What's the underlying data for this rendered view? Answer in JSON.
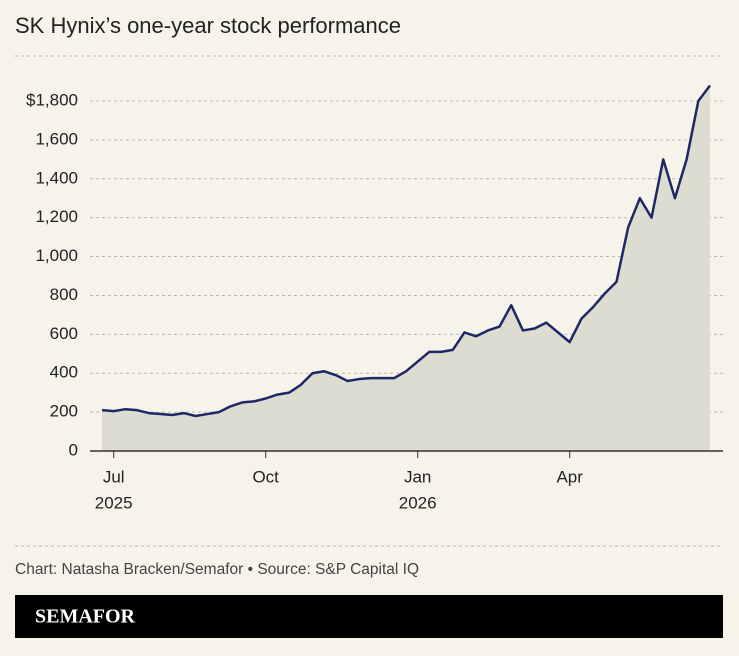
{
  "chart_data": {
    "type": "line",
    "title": "SK Hynix’s one-year stock performance",
    "categories": [
      null,
      null,
      null,
      null,
      null,
      null,
      null,
      null,
      null,
      null,
      null,
      null,
      null,
      null,
      null,
      null,
      null,
      null,
      null,
      null,
      null,
      null,
      null,
      null,
      null,
      null,
      null,
      null,
      null,
      null,
      null,
      null,
      null,
      null,
      null,
      null,
      null,
      null,
      null,
      null,
      null,
      null,
      null,
      null,
      null,
      null,
      null,
      null,
      null,
      null,
      null,
      null,
      null
    ],
    "xticks": [
      {
        "value": 1,
        "label": "Jul"
      },
      {
        "value": 14,
        "label": "Oct"
      },
      {
        "value": 27,
        "label": "Jan"
      },
      {
        "value": 40,
        "label": "Apr"
      }
    ],
    "xtick_years": [
      {
        "value": 1,
        "label": "2025"
      },
      {
        "value": 27,
        "label": "2026"
      }
    ],
    "values": [
      210,
      205,
      215,
      210,
      195,
      190,
      185,
      195,
      180,
      190,
      200,
      230,
      250,
      255,
      270,
      290,
      300,
      340,
      400,
      410,
      390,
      360,
      370,
      375,
      375,
      375,
      410,
      460,
      510,
      510,
      520,
      610,
      590,
      620,
      640,
      750,
      620,
      630,
      660,
      610,
      560,
      680,
      740,
      810,
      870,
      1150,
      1300,
      1200,
      1500,
      1300,
      1500,
      1800,
      1880
    ],
    "color": "#1f2767",
    "area_color": "#dddcd1",
    "ylim": [
      0,
      1800
    ],
    "yticks": [
      0,
      200,
      400,
      600,
      800,
      {
        "value": 1000,
        "label": "1,000"
      },
      {
        "value": 1200,
        "label": "1,200"
      },
      {
        "value": 1400,
        "label": "1,400"
      },
      {
        "value": 1600,
        "label": "1,600"
      },
      {
        "value": 1800,
        "label": "$1,800"
      }
    ],
    "grid": true
  },
  "footer": {
    "credit": "Chart: Natasha Bracken/Semafor • Source: S&P Capital IQ",
    "brand": "SEMAFOR"
  }
}
